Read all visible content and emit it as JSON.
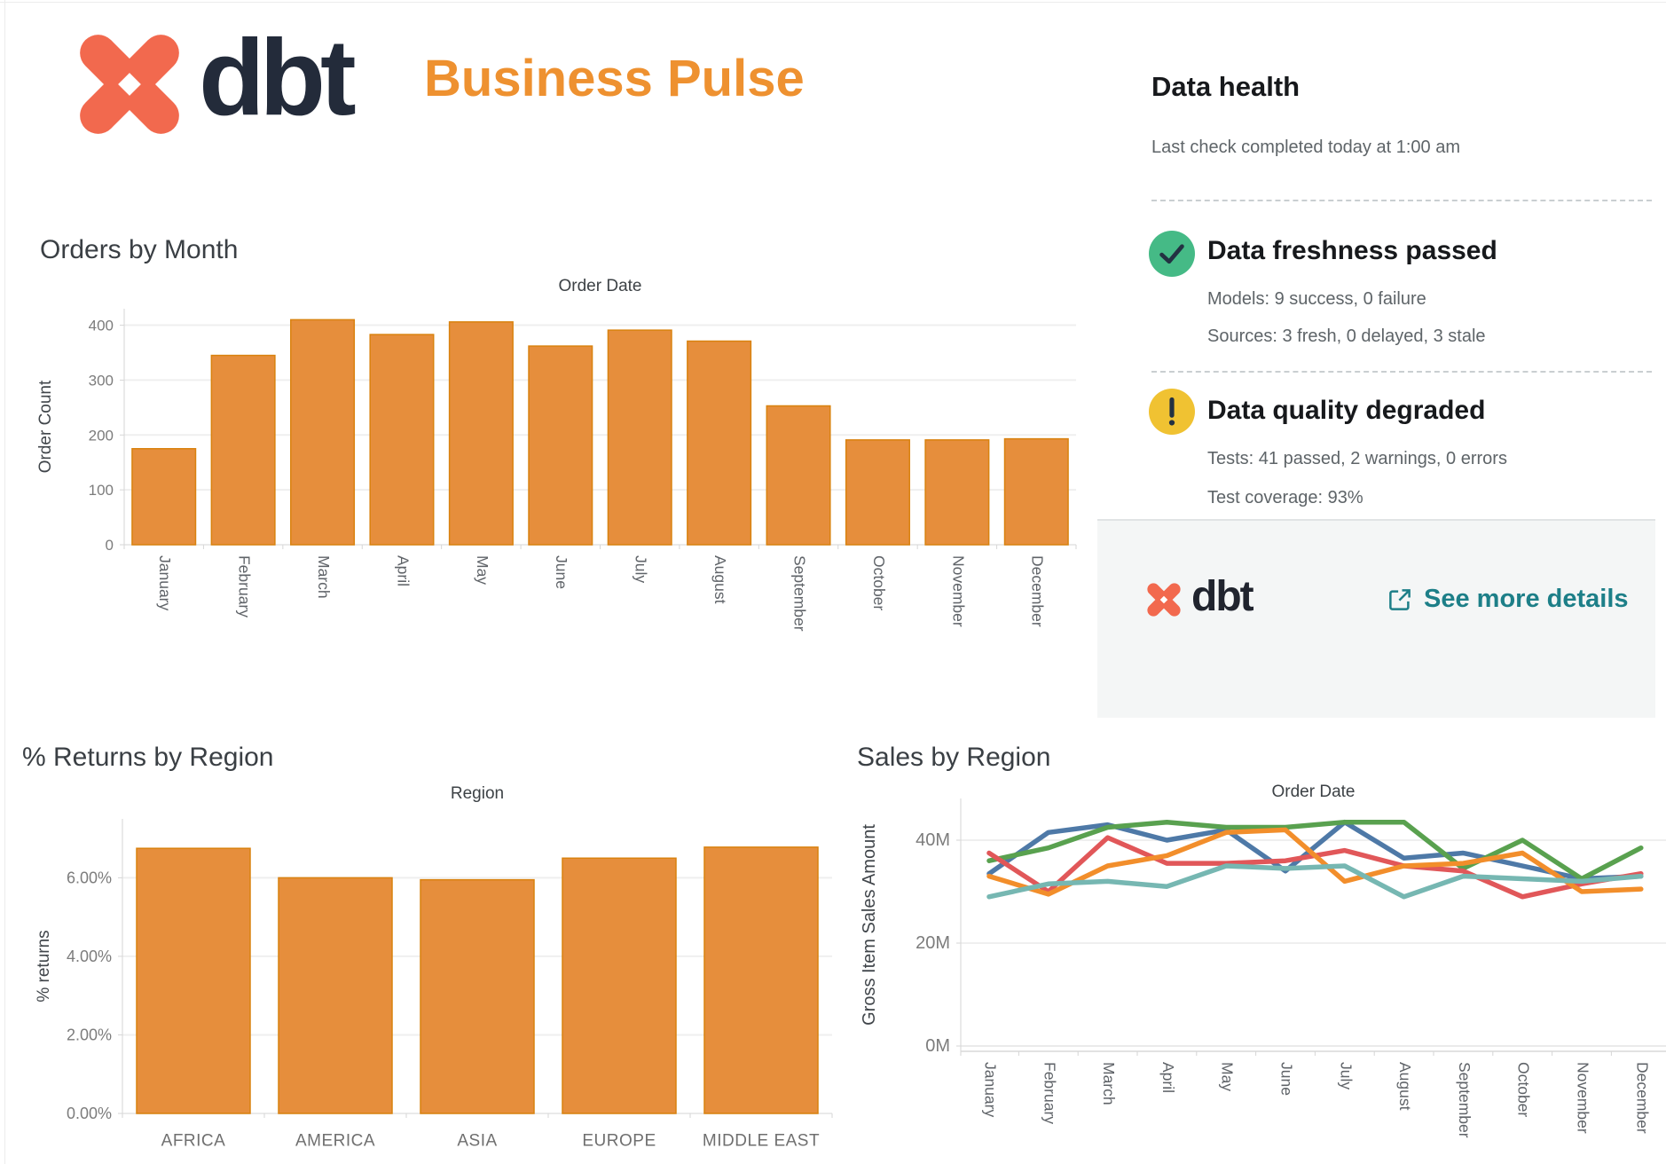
{
  "header": {
    "brand": "dbt",
    "title": "Business Pulse",
    "brand_color": "#f2694e",
    "title_color": "#ee9130"
  },
  "data_health": {
    "title": "Data health",
    "subtitle": "Last check completed today at 1:00 am",
    "items": [
      {
        "icon": "check-icon",
        "icon_color": "#45ba86",
        "title": "Data freshness passed",
        "lines": [
          "Models: 9 success, 0 failure",
          "Sources: 3 fresh, 0 delayed, 3 stale"
        ]
      },
      {
        "icon": "warning-icon",
        "icon_color": "#f0c232",
        "title": "Data quality degraded",
        "lines": [
          "Tests: 41 passed, 2 warnings, 0 errors",
          "Test coverage: 93%"
        ]
      }
    ],
    "footer": {
      "brand": "dbt",
      "link_label": "See more details",
      "link_color": "#1d7f88",
      "link_icon": "external-link-icon"
    }
  },
  "chart_data": [
    {
      "id": "orders",
      "type": "bar",
      "title": "Orders by Month",
      "axis_title": "Order Date",
      "ylabel": "Order Count",
      "categories": [
        "January",
        "February",
        "March",
        "April",
        "May",
        "June",
        "July",
        "August",
        "September",
        "October",
        "November",
        "December"
      ],
      "values": [
        175,
        345,
        410,
        383,
        406,
        362,
        391,
        371,
        253,
        191,
        191,
        193
      ],
      "ylim": [
        0,
        430
      ],
      "yticks": [
        0,
        100,
        200,
        300,
        400
      ],
      "grid": true,
      "bar_color": "#e68e3c",
      "bar_border": "#d9820f"
    },
    {
      "id": "returns",
      "type": "bar",
      "title": "% Returns by Region",
      "axis_title": "Region",
      "ylabel": "% returns",
      "categories": [
        "AFRICA",
        "AMERICA",
        "ASIA",
        "EUROPE",
        "MIDDLE EAST"
      ],
      "values": [
        6.75,
        6.0,
        5.95,
        6.5,
        6.78
      ],
      "ylim": [
        0,
        7.5
      ],
      "yticks": [
        0,
        2,
        4,
        6
      ],
      "ytick_format": "percent2",
      "grid": true,
      "bar_color": "#e68e3c",
      "bar_border": "#d9820f"
    },
    {
      "id": "sales",
      "type": "line",
      "title": "Sales by Region",
      "axis_title": "Order Date",
      "ylabel": "Gross Item Sales Amount",
      "x": [
        "January",
        "February",
        "March",
        "April",
        "May",
        "June",
        "July",
        "August",
        "September",
        "October",
        "November",
        "December"
      ],
      "ylim": [
        0,
        48
      ],
      "yticks": [
        0,
        20,
        40
      ],
      "ytick_suffix": "M",
      "grid": true,
      "legend": "none",
      "series": [
        {
          "name": "blue",
          "color": "#4e79a7",
          "values": [
            33.5,
            41.5,
            43,
            40,
            42,
            34,
            43.5,
            36.5,
            37.5,
            35,
            32.5,
            33
          ]
        },
        {
          "name": "green",
          "color": "#59a14f",
          "values": [
            36,
            38.5,
            42.5,
            43.5,
            42.5,
            42.5,
            43.5,
            43.5,
            34.5,
            40,
            32.5,
            38.5
          ]
        },
        {
          "name": "red",
          "color": "#e15759",
          "values": [
            37.5,
            30,
            40.5,
            35.5,
            35.5,
            36,
            38,
            35,
            34,
            29,
            31.5,
            33.5
          ]
        },
        {
          "name": "orange",
          "color": "#f28e2b",
          "values": [
            33,
            29.5,
            35,
            37,
            41.5,
            42,
            32,
            35,
            35.5,
            37.5,
            30,
            30.5
          ]
        },
        {
          "name": "teal",
          "color": "#76b7b2",
          "values": [
            29,
            31.5,
            32,
            31,
            35,
            34.5,
            35,
            29,
            33,
            32.5,
            32,
            33
          ]
        }
      ]
    }
  ]
}
